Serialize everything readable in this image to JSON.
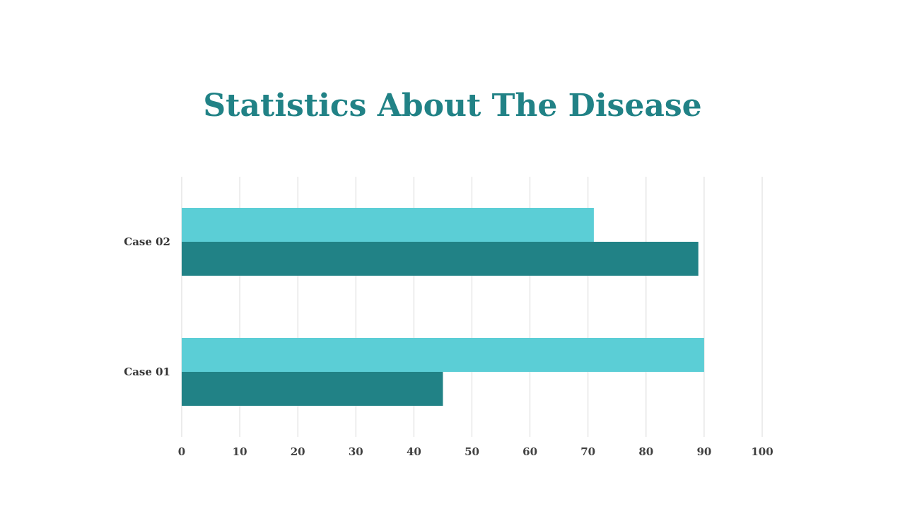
{
  "slide": {
    "title": "Statistics About The Disease"
  },
  "colors": {
    "title": "#218286",
    "series_light": "#5BCED6",
    "series_dark": "#218286",
    "gridline": "#D9D9D9",
    "tick_text": "#404040"
  },
  "chart_data": {
    "type": "bar",
    "orientation": "horizontal",
    "title": "",
    "xlabel": "",
    "ylabel": "",
    "categories": [
      "Case 01",
      "Case 02"
    ],
    "x_ticks": [
      "0",
      "10",
      "20",
      "30",
      "40",
      "50",
      "60",
      "70",
      "80",
      "90",
      "100"
    ],
    "xlim": [
      0,
      100
    ],
    "grid": "vertical",
    "legend": "none",
    "series": [
      {
        "values": [
          90,
          71
        ],
        "color": "#5BCED6"
      },
      {
        "values": [
          45,
          89
        ],
        "color": "#218286"
      }
    ]
  }
}
